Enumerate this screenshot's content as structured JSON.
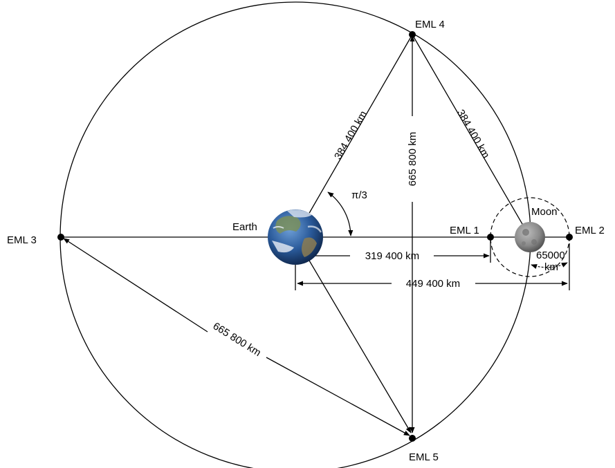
{
  "points": {
    "eml1": "EML 1",
    "eml2": "EML 2",
    "eml3": "EML 3",
    "eml4": "EML 4",
    "eml5": "EML 5",
    "earth": "Earth",
    "moon": "Moon"
  },
  "distances": {
    "earth_eml4": "384 400  km",
    "moon_eml4": "384 400  km",
    "eml4_eml5": "665 800  km",
    "eml3_eml5": "665 800  km",
    "earth_eml1": "319 400 km",
    "earth_eml2": "449 400 km",
    "moon_radius_value": "65000",
    "moon_radius_unit": "km"
  },
  "angle_label": "π/3",
  "colors": {
    "line": "#000000",
    "earth_ocean": "#1f4f8f",
    "earth_cloud": "#e8eef5",
    "moon": "#8a8a8a"
  }
}
